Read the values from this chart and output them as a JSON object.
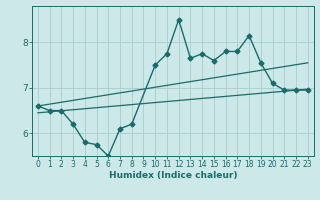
{
  "xlabel": "Humidex (Indice chaleur)",
  "ylabel": "",
  "xlim": [
    -0.5,
    23.5
  ],
  "ylim": [
    5.5,
    8.8
  ],
  "yticks": [
    6,
    7,
    8
  ],
  "xticks": [
    0,
    1,
    2,
    3,
    4,
    5,
    6,
    7,
    8,
    9,
    10,
    11,
    12,
    13,
    14,
    15,
    16,
    17,
    18,
    19,
    20,
    21,
    22,
    23
  ],
  "background_color": "#cde8e8",
  "grid_color": "#aacccc",
  "line_color": "#1a6b6b",
  "lines": [
    {
      "x": [
        0,
        1,
        2,
        3,
        4,
        5,
        6,
        7,
        8,
        10,
        11,
        12,
        13,
        14,
        15,
        16,
        17,
        18,
        19,
        20,
        21,
        22,
        23
      ],
      "y": [
        6.6,
        6.5,
        6.5,
        6.2,
        5.8,
        5.75,
        5.5,
        6.1,
        6.2,
        7.5,
        7.75,
        8.5,
        7.65,
        7.75,
        7.6,
        7.8,
        7.8,
        8.15,
        7.55,
        7.1,
        6.95,
        6.95,
        6.95
      ],
      "marker": "D",
      "markersize": 2.5,
      "linewidth": 1.0
    },
    {
      "x": [
        0,
        23
      ],
      "y": [
        6.6,
        7.55
      ],
      "marker": null,
      "markersize": 0,
      "linewidth": 0.9
    },
    {
      "x": [
        0,
        23
      ],
      "y": [
        6.45,
        6.97
      ],
      "marker": null,
      "markersize": 0,
      "linewidth": 0.9
    }
  ]
}
